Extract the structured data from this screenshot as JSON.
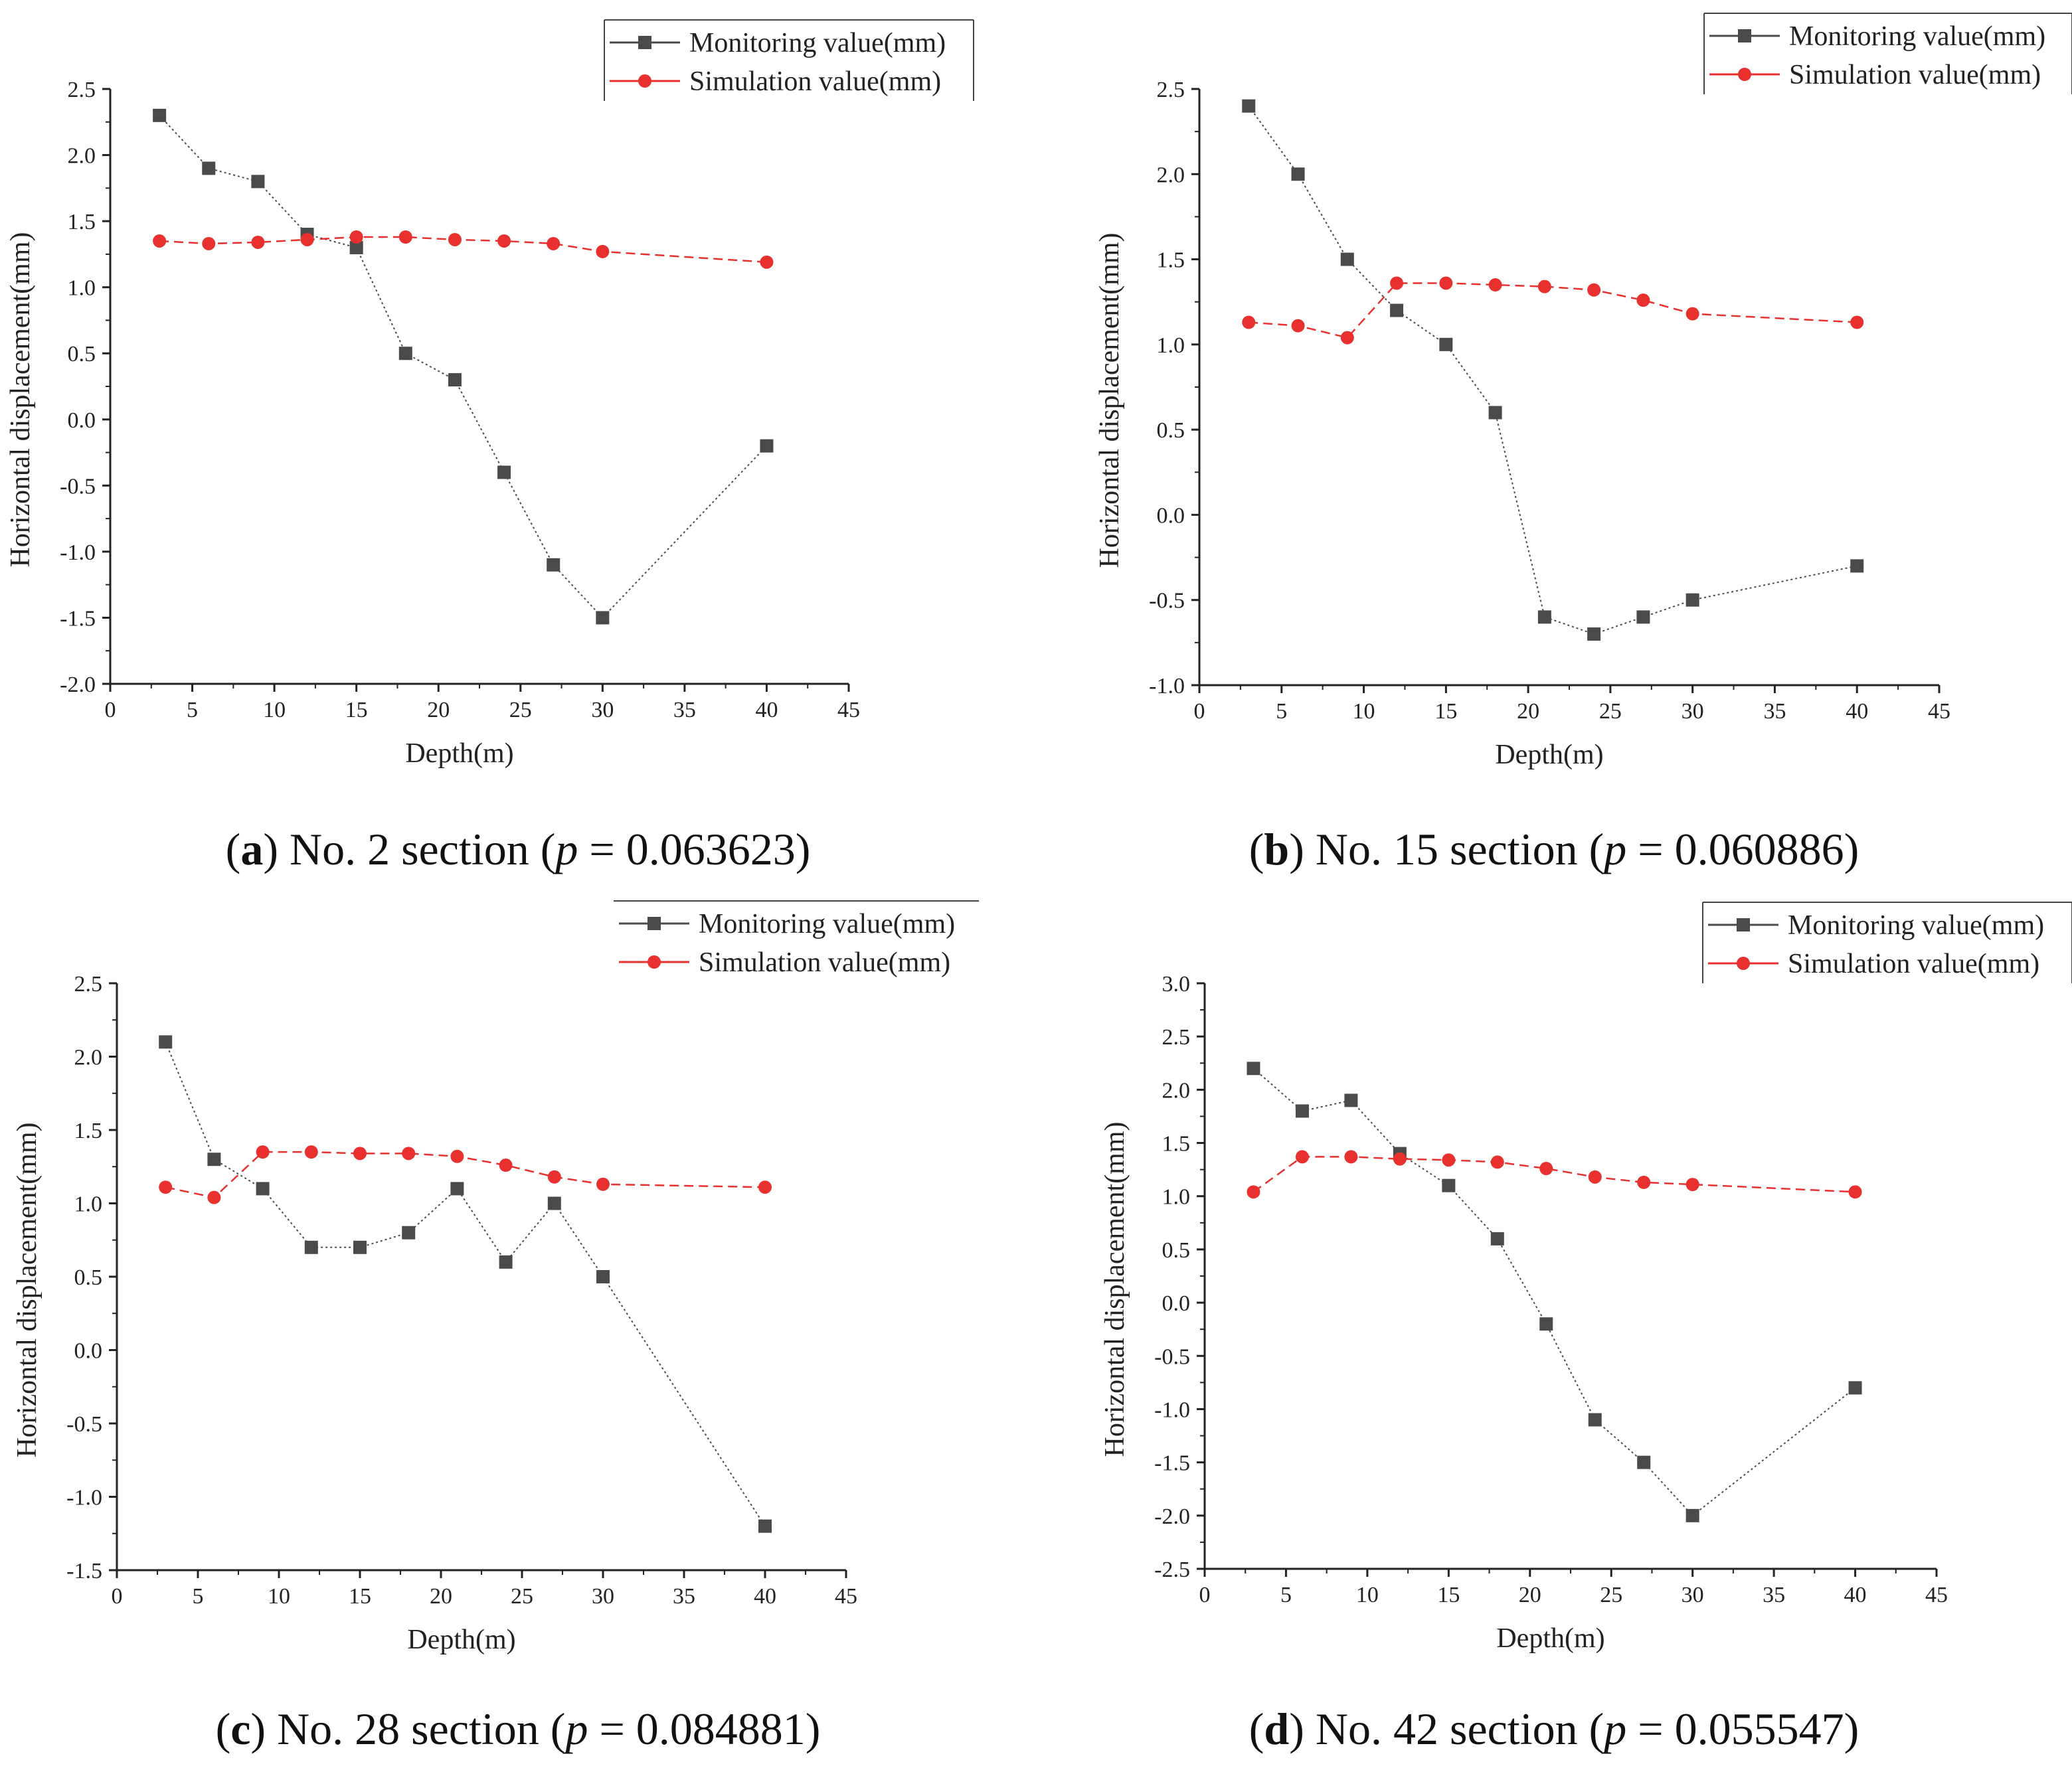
{
  "colors": {
    "monitoring": "#4a4a4a",
    "simulation": "#e8312f"
  },
  "chart_data": [
    {
      "type": "line",
      "caption": {
        "letter": "a",
        "text_before": "No. 2 section (",
        "p_label": "p",
        "p_value": " = 0.063623)"
      },
      "xlabel": "Depth(m)",
      "ylabel": "Horizontal displacement(mm)",
      "xlim": [
        0,
        45
      ],
      "xticks": [
        0,
        5,
        10,
        15,
        20,
        25,
        30,
        35,
        40,
        45
      ],
      "ylim": [
        -2.0,
        2.5
      ],
      "yticks": [
        "-2.0",
        "-1.5",
        "-1.0",
        "-0.5",
        "0.0",
        "0.5",
        "1.0",
        "1.5",
        "2.0",
        "2.5"
      ],
      "grid": false,
      "legend_position": "top-right",
      "legend_boxed": true,
      "x": [
        3,
        6,
        9,
        12,
        15,
        18,
        21,
        24,
        27,
        30,
        40
      ],
      "series": [
        {
          "name": "Monitoring value(mm)",
          "marker": "square",
          "values": [
            2.3,
            1.9,
            1.8,
            1.4,
            1.3,
            0.5,
            0.3,
            -0.4,
            -1.1,
            -1.5,
            -0.2
          ]
        },
        {
          "name": "Simulation value(mm)",
          "marker": "circle",
          "values": [
            1.35,
            1.33,
            1.34,
            1.36,
            1.38,
            1.38,
            1.36,
            1.35,
            1.33,
            1.27,
            1.19
          ]
        }
      ]
    },
    {
      "type": "line",
      "caption": {
        "letter": "b",
        "text_before": "No. 15 section (",
        "p_label": "p",
        "p_value": " = 0.060886)"
      },
      "xlabel": "Depth(m)",
      "ylabel": "Horizontal displacement(mm)",
      "xlim": [
        0,
        45
      ],
      "xticks": [
        0,
        5,
        10,
        15,
        20,
        25,
        30,
        35,
        40,
        45
      ],
      "ylim": [
        -1.0,
        2.5
      ],
      "yticks": [
        "-1.0",
        "-0.5",
        "0.0",
        "0.5",
        "1.0",
        "1.5",
        "2.0",
        "2.5"
      ],
      "grid": false,
      "legend_position": "top-right",
      "legend_boxed": true,
      "x": [
        3,
        6,
        9,
        12,
        15,
        18,
        21,
        24,
        27,
        30,
        40
      ],
      "series": [
        {
          "name": "Monitoring value(mm)",
          "marker": "square",
          "values": [
            2.4,
            2.0,
            1.5,
            1.2,
            1.0,
            0.6,
            -0.6,
            -0.7,
            -0.6,
            -0.5,
            -0.3
          ]
        },
        {
          "name": "Simulation value(mm)",
          "marker": "circle",
          "values": [
            1.13,
            1.11,
            1.04,
            1.36,
            1.36,
            1.35,
            1.34,
            1.32,
            1.26,
            1.18,
            1.13
          ]
        }
      ]
    },
    {
      "type": "line",
      "caption": {
        "letter": "c",
        "text_before": "No. 28 section (",
        "p_label": "p",
        "p_value": " = 0.084881)"
      },
      "xlabel": "Depth(m)",
      "ylabel": "Horizontal displacement(mm)",
      "xlim": [
        0,
        45
      ],
      "xticks": [
        0,
        5,
        10,
        15,
        20,
        25,
        30,
        35,
        40,
        45
      ],
      "ylim": [
        -1.5,
        2.5
      ],
      "yticks": [
        "-1.5",
        "-1.0",
        "-0.5",
        "0.0",
        "0.5",
        "1.0",
        "1.5",
        "2.0",
        "2.5"
      ],
      "grid": false,
      "legend_position": "top-right",
      "legend_boxed": false,
      "x": [
        3,
        6,
        9,
        12,
        15,
        18,
        21,
        24,
        27,
        30,
        40
      ],
      "series": [
        {
          "name": "Monitoring value(mm)",
          "marker": "square",
          "values": [
            2.1,
            1.3,
            1.1,
            0.7,
            0.7,
            0.8,
            1.1,
            0.6,
            1.0,
            0.5,
            -1.2
          ]
        },
        {
          "name": "Simulation value(mm)",
          "marker": "circle",
          "values": [
            1.11,
            1.04,
            1.35,
            1.35,
            1.34,
            1.34,
            1.32,
            1.26,
            1.18,
            1.13,
            1.11
          ]
        }
      ]
    },
    {
      "type": "line",
      "caption": {
        "letter": "d",
        "text_before": "No. 42 section (",
        "p_label": "p",
        "p_value": " = 0.055547)"
      },
      "xlabel": "Depth(m)",
      "ylabel": "Horizontal displacement(mm)",
      "xlim": [
        0,
        45
      ],
      "xticks": [
        0,
        5,
        10,
        15,
        20,
        25,
        30,
        35,
        40,
        45
      ],
      "ylim": [
        -2.5,
        3.0
      ],
      "yticks": [
        "-2.5",
        "-2.0",
        "-1.5",
        "-1.0",
        "-0.5",
        "0.0",
        "0.5",
        "1.0",
        "1.5",
        "2.0",
        "2.5",
        "3.0"
      ],
      "grid": false,
      "legend_position": "top-right",
      "legend_boxed": true,
      "x": [
        3,
        6,
        9,
        12,
        15,
        18,
        21,
        24,
        27,
        30,
        40
      ],
      "series": [
        {
          "name": "Monitoring value(mm)",
          "marker": "square",
          "values": [
            2.2,
            1.8,
            1.9,
            1.4,
            1.1,
            0.6,
            -0.2,
            -1.1,
            -1.5,
            -2.0,
            -0.8
          ]
        },
        {
          "name": "Simulation value(mm)",
          "marker": "circle",
          "values": [
            1.04,
            1.37,
            1.37,
            1.35,
            1.34,
            1.32,
            1.26,
            1.18,
            1.13,
            1.11,
            1.04
          ]
        }
      ]
    }
  ]
}
